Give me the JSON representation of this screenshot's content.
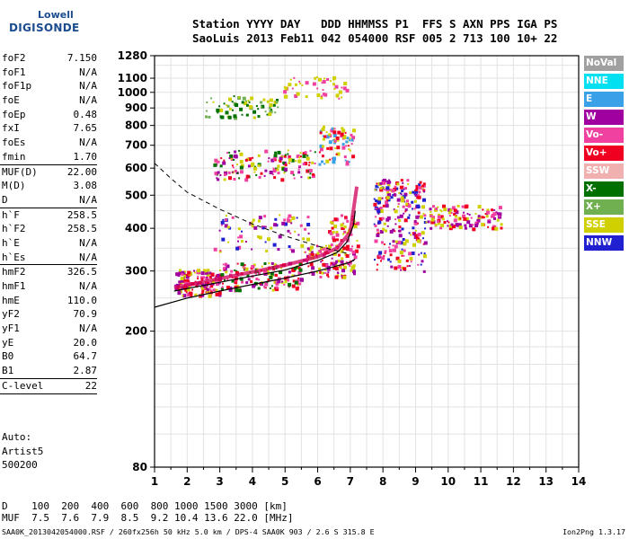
{
  "logo": {
    "line1": "Lowell",
    "line2": "DIGISONDE"
  },
  "header": {
    "line1": "Station YYYY DAY   DDD HHMMSS P1  FFS S AXN PPS IGA PS",
    "line2": "SaoLuis 2013 Feb11 042 054000 RSF 005 2 713 100 10+ 22"
  },
  "params": [
    {
      "k": "foF2",
      "v": "7.150"
    },
    {
      "k": "foF1",
      "v": "N/A"
    },
    {
      "k": "foF1p",
      "v": "N/A"
    },
    {
      "k": "foE",
      "v": "N/A"
    },
    {
      "k": "foEp",
      "v": "0.48"
    },
    {
      "k": "fxI",
      "v": "7.65"
    },
    {
      "k": "foEs",
      "v": "N/A"
    },
    {
      "k": "fmin",
      "v": "1.70"
    },
    {
      "sep": true
    },
    {
      "k": "MUF(D)",
      "v": "22.00"
    },
    {
      "k": "M(D)",
      "v": "3.08"
    },
    {
      "k": "D",
      "v": "N/A"
    },
    {
      "sep": true
    },
    {
      "k": "h`F",
      "v": "258.5"
    },
    {
      "k": "h`F2",
      "v": "258.5"
    },
    {
      "k": "h`E",
      "v": "N/A"
    },
    {
      "k": "h`Es",
      "v": "N/A"
    },
    {
      "sep": true
    },
    {
      "k": "hmF2",
      "v": "326.5"
    },
    {
      "k": "hmF1",
      "v": "N/A"
    },
    {
      "k": "hmE",
      "v": "110.0"
    },
    {
      "k": "yF2",
      "v": "70.9"
    },
    {
      "k": "yF1",
      "v": "N/A"
    },
    {
      "k": "yE",
      "v": "20.0"
    },
    {
      "k": "B0",
      "v": "64.7"
    },
    {
      "k": "B1",
      "v": "2.87"
    },
    {
      "sep": true
    },
    {
      "k": "C-level",
      "v": "22"
    },
    {
      "sep": true
    }
  ],
  "auto": {
    "line1": "Auto:",
    "line2": "Artist5",
    "line3": "500200"
  },
  "muf_table": {
    "line1": "D    100  200  400  600  800 1000 1500 3000 [km]",
    "line2": "MUF  7.5  7.6  7.9  8.5  9.2 10.4 13.6 22.0 [MHz]"
  },
  "footer": "SAA0K_2013042054000.RSF / 260fx256h 50 kHz 5.0 km / DPS-4 SAA0K 903 / 2.6 S 315.8 E",
  "version": "Ion2Png 1.3.17",
  "legend": [
    {
      "label": "NoVal",
      "color": "#a0a0a0"
    },
    {
      "label": "NNE",
      "color": "#00e0f0"
    },
    {
      "label": "E",
      "color": "#3aa0e8"
    },
    {
      "label": "W",
      "color": "#a000a0"
    },
    {
      "label": "Vo-",
      "color": "#f040a0"
    },
    {
      "label": "Vo+",
      "color": "#f00020"
    },
    {
      "label": "SSW",
      "color": "#f0b0b0"
    },
    {
      "label": "X-",
      "color": "#007000"
    },
    {
      "label": "X+",
      "color": "#70b050"
    },
    {
      "label": "SSE",
      "color": "#d0d000"
    },
    {
      "label": "NNW",
      "color": "#2020d0"
    }
  ],
  "chart_data": {
    "type": "scatter",
    "x_ticks": [
      "1",
      "2",
      "3",
      "4",
      "5",
      "6",
      "7",
      "8",
      "9",
      "10",
      "11",
      "12",
      "13",
      "14"
    ],
    "y_ticks": [
      "80",
      "200",
      "300",
      "400",
      "500",
      "600",
      "700",
      "800",
      "900",
      "1000",
      "1100",
      "1280"
    ],
    "xlim": [
      1,
      14
    ],
    "ylim": [
      80,
      1280
    ],
    "y_scale": "log",
    "grid": true,
    "clusters": [
      {
        "f": [
          1.6,
          3.0
        ],
        "h": [
          255,
          305
        ],
        "n": 160,
        "c": [
          "#f040a0",
          "#a000a0",
          "#f00020",
          "#d0d000"
        ]
      },
      {
        "f": [
          3.0,
          5.5
        ],
        "h": [
          265,
          320
        ],
        "n": 170,
        "c": [
          "#f040a0",
          "#a000a0",
          "#f00020",
          "#d0d000",
          "#007000"
        ]
      },
      {
        "f": [
          5.5,
          7.15
        ],
        "h": [
          290,
          360
        ],
        "n": 120,
        "c": [
          "#f040a0",
          "#a000a0",
          "#f00020",
          "#d0d000"
        ]
      },
      {
        "f": [
          6.3,
          7.2
        ],
        "h": [
          350,
          440
        ],
        "n": 50,
        "c": [
          "#f00020",
          "#d0d000",
          "#f040a0"
        ]
      },
      {
        "f": [
          2.8,
          5.8
        ],
        "h": [
          345,
          440
        ],
        "n": 80,
        "c": [
          "#d0d000",
          "#2020d0",
          "#f040a0",
          "#a000a0"
        ]
      },
      {
        "f": [
          7.7,
          9.3
        ],
        "h": [
          300,
          560
        ],
        "n": 260,
        "c": [
          "#d0d000",
          "#f040a0",
          "#a000a0",
          "#f00020",
          "#2020d0"
        ]
      },
      {
        "f": [
          9.3,
          11.6
        ],
        "h": [
          400,
          470
        ],
        "n": 120,
        "c": [
          "#d0d000",
          "#f040a0",
          "#a000a0",
          "#f00020"
        ]
      },
      {
        "f": [
          2.8,
          5.9
        ],
        "h": [
          560,
          680
        ],
        "n": 150,
        "c": [
          "#d0d000",
          "#f040a0",
          "#a000a0",
          "#f00020",
          "#007000"
        ]
      },
      {
        "f": [
          6.0,
          7.1
        ],
        "h": [
          620,
          800
        ],
        "n": 80,
        "c": [
          "#d0d000",
          "#f040a0",
          "#f00020",
          "#3aa0e8"
        ]
      },
      {
        "f": [
          2.5,
          4.8
        ],
        "h": [
          850,
          980
        ],
        "n": 70,
        "c": [
          "#d0d000",
          "#007000",
          "#70b050"
        ]
      },
      {
        "f": [
          4.9,
          7.0
        ],
        "h": [
          960,
          1120
        ],
        "n": 50,
        "c": [
          "#d0d000",
          "#f040a0"
        ]
      }
    ],
    "solid_curve": [
      [
        1.0,
        235
      ],
      [
        2.0,
        250
      ],
      [
        3.0,
        262
      ],
      [
        4.0,
        274
      ],
      [
        5.0,
        286
      ],
      [
        6.0,
        300
      ],
      [
        7.0,
        318
      ],
      [
        7.15,
        325
      ]
    ],
    "red_curve": [
      [
        1.6,
        262
      ],
      [
        3.0,
        278
      ],
      [
        4.0,
        290
      ],
      [
        5.0,
        302
      ],
      [
        6.0,
        322
      ],
      [
        6.6,
        340
      ],
      [
        6.9,
        365
      ],
      [
        7.1,
        410
      ],
      [
        7.15,
        450
      ]
    ],
    "trace_curve": [
      [
        1.6,
        268
      ],
      [
        3.0,
        285
      ],
      [
        4.0,
        298
      ],
      [
        5.0,
        312
      ],
      [
        6.0,
        330
      ],
      [
        6.6,
        350
      ],
      [
        7.0,
        390
      ],
      [
        7.2,
        530
      ]
    ],
    "dashed_curve": [
      [
        1.0,
        620
      ],
      [
        1.5,
        560
      ],
      [
        2.0,
        510
      ],
      [
        3.0,
        455
      ],
      [
        4.0,
        412
      ],
      [
        5.0,
        380
      ],
      [
        6.0,
        355
      ],
      [
        7.0,
        336
      ]
    ]
  }
}
